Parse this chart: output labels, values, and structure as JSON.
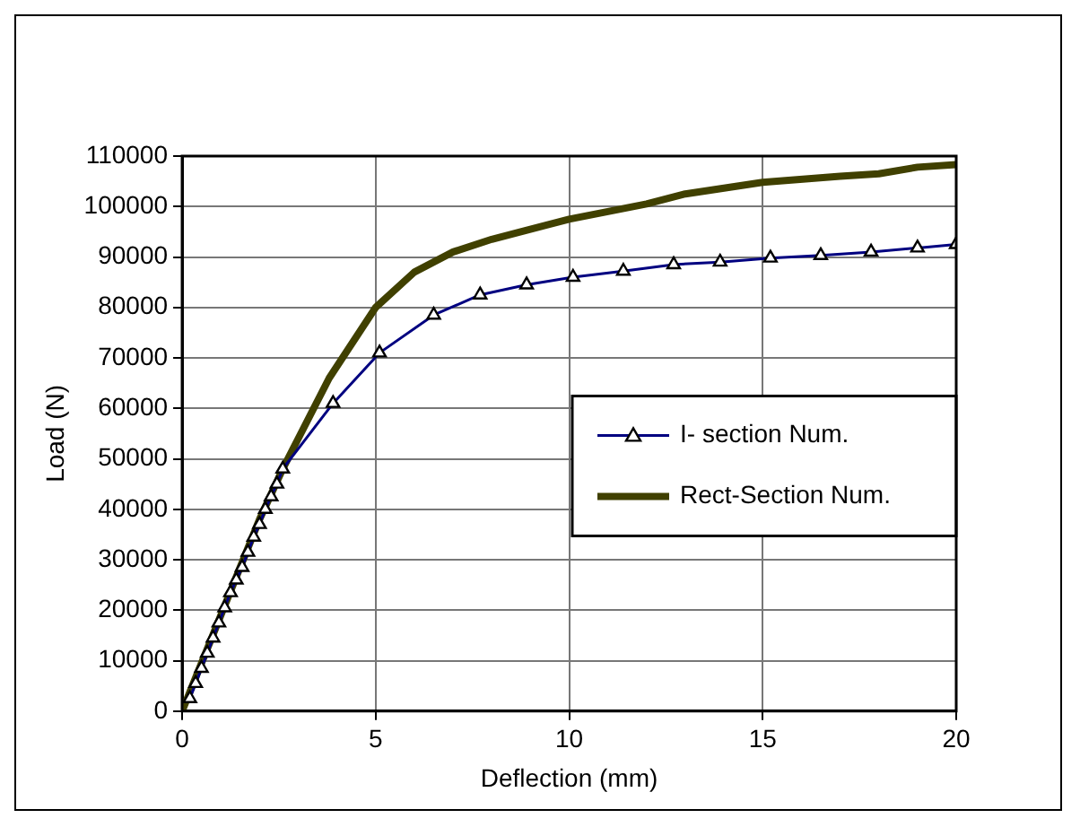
{
  "chart_data": {
    "type": "line",
    "xlabel": "Deflection (mm)",
    "ylabel": "Load (N)",
    "xlim": [
      0,
      20
    ],
    "xticks": [
      0,
      5,
      10,
      15,
      20
    ],
    "ylim": [
      0,
      110000
    ],
    "yticks": [
      0,
      10000,
      20000,
      30000,
      40000,
      50000,
      60000,
      70000,
      80000,
      90000,
      100000,
      110000
    ],
    "grid": true,
    "legend": "right",
    "line_style": "solid",
    "series": [
      {
        "name": "I- section Num.",
        "color": "#000080",
        "marker": "triangle",
        "x": [
          0.2,
          0.35,
          0.5,
          0.65,
          0.8,
          0.95,
          1.1,
          1.25,
          1.4,
          1.55,
          1.7,
          1.85,
          2.0,
          2.15,
          2.3,
          2.45,
          2.6,
          3.9,
          5.1,
          6.5,
          7.7,
          8.9,
          10.1,
          11.4,
          12.7,
          13.9,
          15.2,
          16.5,
          17.8,
          19.0,
          20
        ],
        "values": [
          2500,
          5500,
          8500,
          11500,
          14500,
          17500,
          20500,
          23500,
          26000,
          28500,
          31500,
          34500,
          37000,
          40000,
          42500,
          45000,
          48000,
          61000,
          71000,
          78500,
          82500,
          84500,
          86000,
          87200,
          88500,
          89000,
          89800,
          90300,
          91000,
          91800,
          92500
        ]
      },
      {
        "name": "Rect-Section Num.",
        "color": "#404000",
        "marker": "none",
        "x": [
          0,
          1,
          2,
          2.6,
          3,
          3.8,
          5,
          6,
          7,
          8,
          10,
          12,
          13,
          15,
          17,
          18,
          19,
          20
        ],
        "values": [
          0,
          19000,
          38000,
          48000,
          54000,
          66000,
          80000,
          87000,
          91000,
          93500,
          97500,
          100500,
          102500,
          104800,
          106000,
          106500,
          107800,
          108300
        ]
      }
    ]
  }
}
